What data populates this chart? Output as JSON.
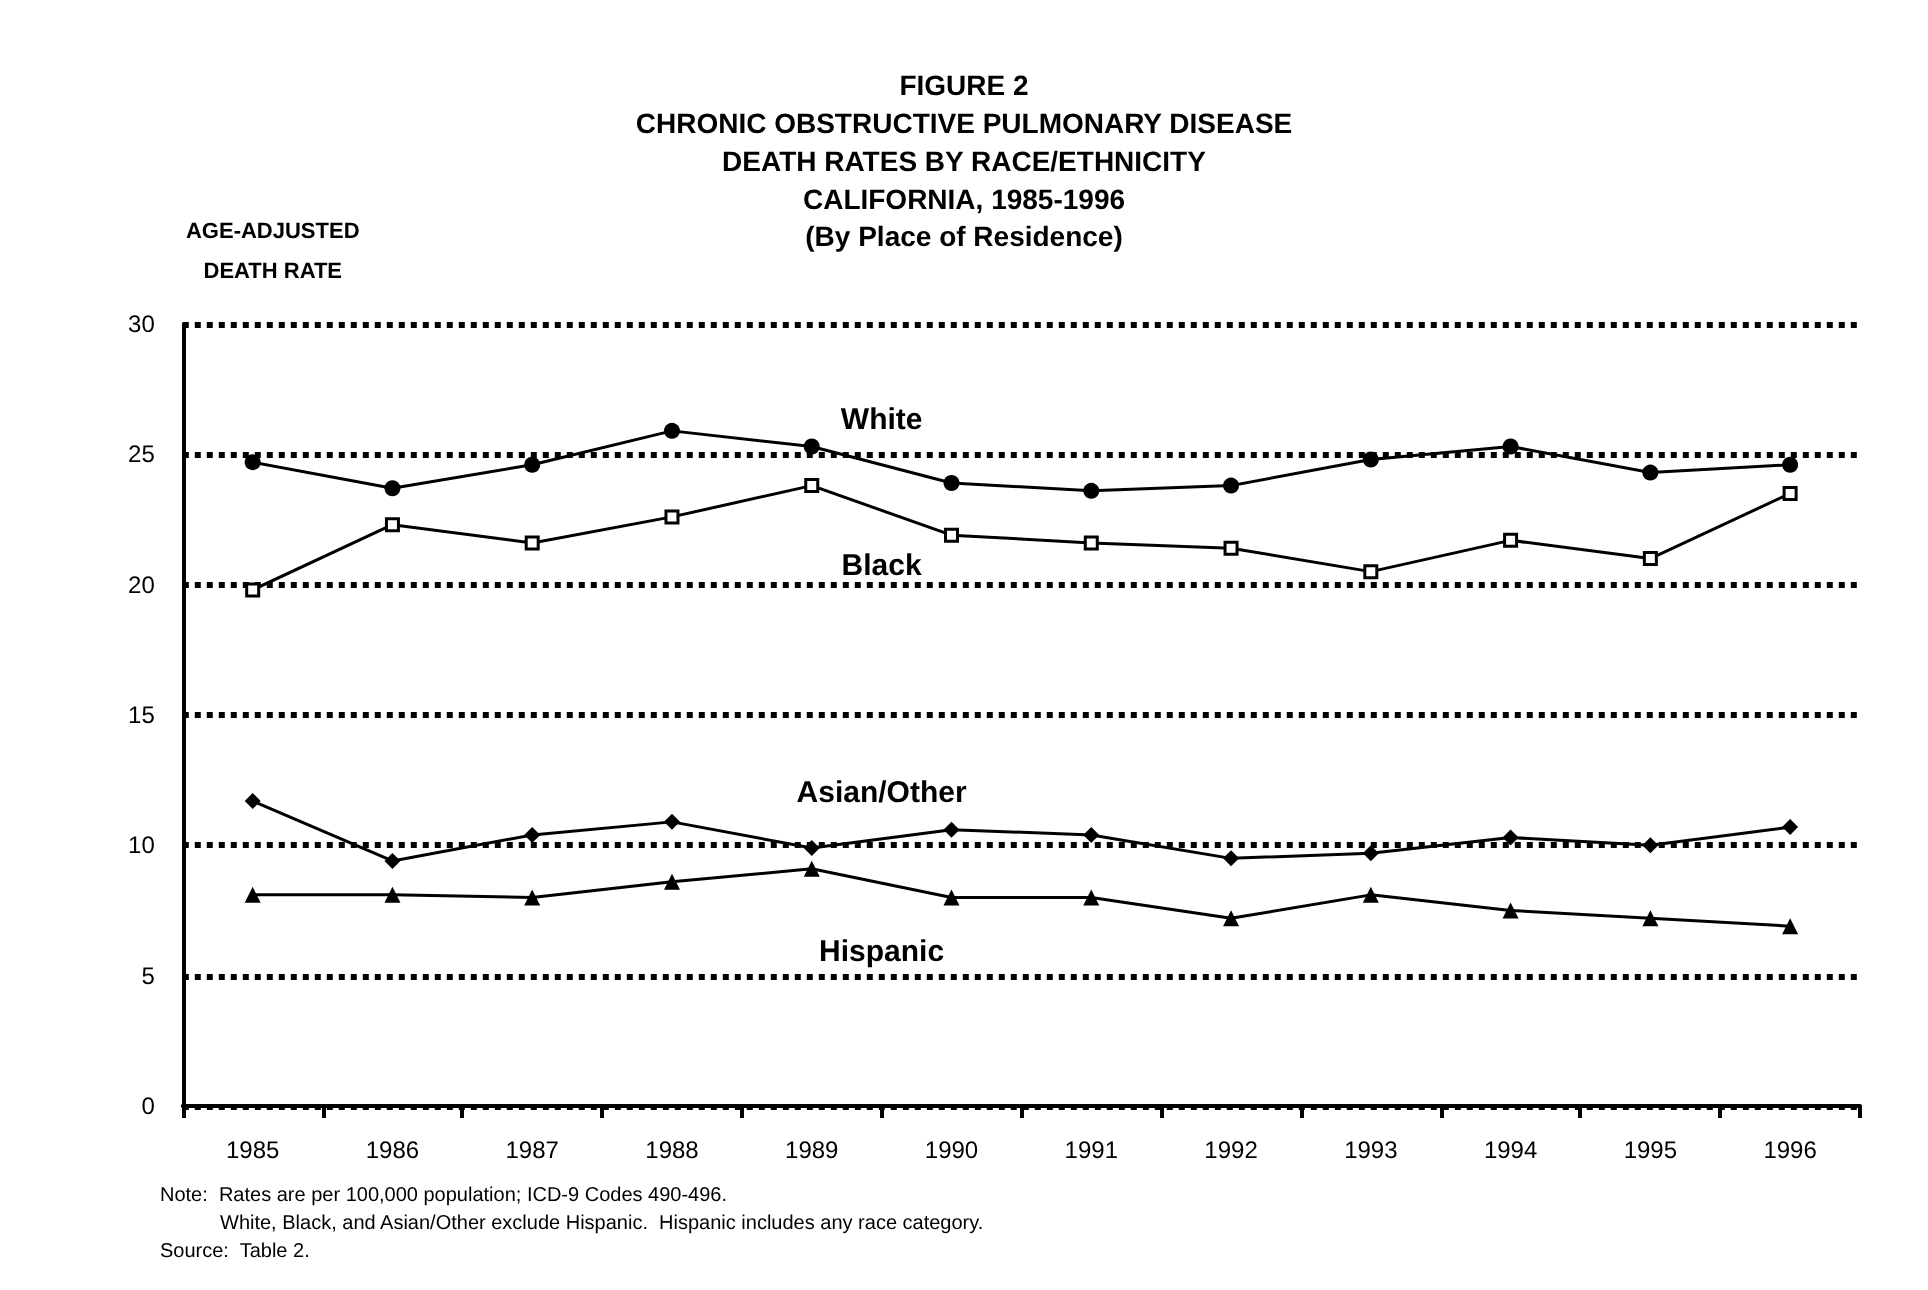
{
  "chart_data": {
    "type": "line",
    "title": "FIGURE 2\nCHRONIC OBSTRUCTIVE PULMONARY DISEASE\nDEATH RATES BY RACE/ETHNICITY\nCALIFORNIA, 1985-1996",
    "subtitle": "(By Place of Residence)",
    "ylabel": "AGE-ADJUSTED\nDEATH RATE",
    "categories": [
      "1985",
      "1986",
      "1987",
      "1988",
      "1989",
      "1990",
      "1991",
      "1992",
      "1993",
      "1994",
      "1995",
      "1996"
    ],
    "series": [
      {
        "name": "White",
        "color": "#000000",
        "marker": "circle",
        "values": [
          24.7,
          23.7,
          24.6,
          25.9,
          25.3,
          23.9,
          23.6,
          23.8,
          24.8,
          25.3,
          24.3,
          24.6
        ]
      },
      {
        "name": "Black",
        "color": "#000000",
        "marker": "square",
        "values": [
          19.8,
          22.3,
          21.6,
          22.6,
          23.8,
          21.9,
          21.6,
          21.4,
          20.5,
          21.7,
          21.0,
          23.5
        ]
      },
      {
        "name": "Asian/Other",
        "color": "#000000",
        "marker": "diamond",
        "values": [
          11.7,
          9.4,
          10.4,
          10.9,
          9.9,
          10.6,
          10.4,
          9.5,
          9.7,
          10.3,
          10.0,
          10.7
        ]
      },
      {
        "name": "Hispanic",
        "color": "#000000",
        "marker": "triangle",
        "values": [
          8.1,
          8.1,
          8.0,
          8.6,
          9.1,
          8.0,
          8.0,
          7.2,
          8.1,
          7.5,
          7.2,
          6.9
        ]
      }
    ],
    "ylim": [
      0,
      30
    ],
    "yticks": [
      0,
      5,
      10,
      15,
      20,
      25,
      30
    ],
    "grid": "y",
    "legend": false,
    "line_style": "solid",
    "annotations": [
      "Note:  Rates are per 100,000 population; ICD-9 Codes 490-496.",
      "White, Black, and Asian/Other exclude Hispanic.  Hispanic includes any race category.",
      "Source:  Table 2."
    ]
  }
}
